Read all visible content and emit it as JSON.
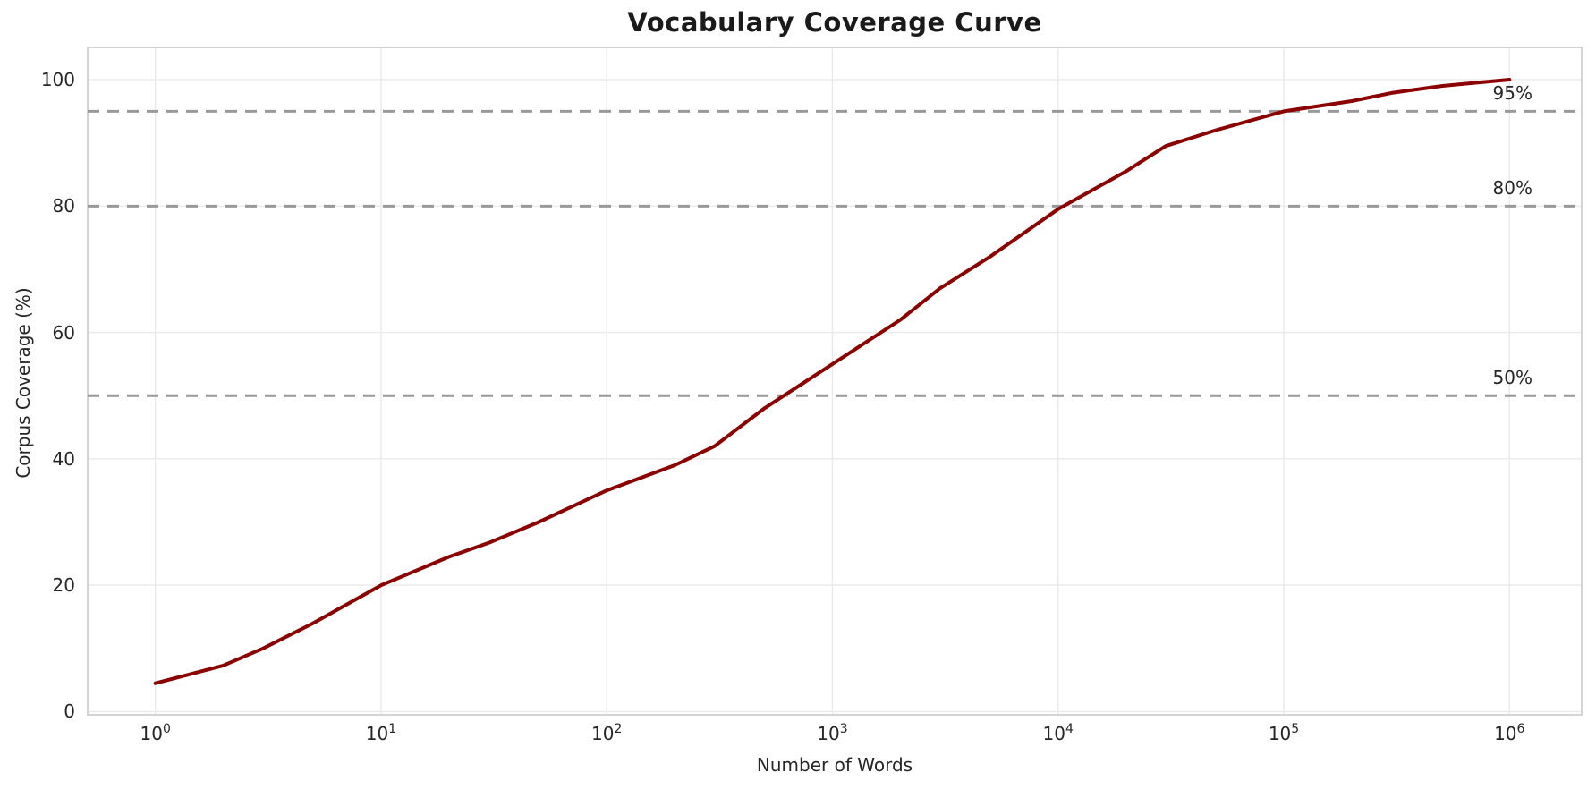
{
  "chart_data": {
    "type": "line",
    "title": "Vocabulary Coverage Curve",
    "xlabel": "Number of Words",
    "ylabel": "Corpus Coverage (%)",
    "x_scale": "log",
    "grid": true,
    "legend": false,
    "x": [
      1,
      2,
      3,
      5,
      10,
      20,
      30,
      50,
      100,
      200,
      300,
      500,
      1000,
      2000,
      3000,
      5000,
      10000,
      20000,
      30000,
      50000,
      100000,
      200000,
      300000,
      500000,
      1000000
    ],
    "y": [
      4.5,
      7.3,
      10,
      14,
      20,
      24.5,
      26.7,
      30,
      35,
      39,
      42,
      48,
      55,
      62,
      67,
      72,
      79.5,
      85.5,
      89.5,
      92,
      95,
      96.6,
      97.9,
      99,
      100
    ],
    "xlim_log10": [
      -0.3,
      6.32
    ],
    "ylim": [
      -0.5,
      105.1
    ],
    "x_tick_base": "10",
    "x_tick_exponents": [
      "0",
      "1",
      "2",
      "3",
      "4",
      "5",
      "6"
    ],
    "y_ticks": [
      "0",
      "20",
      "40",
      "60",
      "80",
      "100"
    ],
    "y_tick_values": [
      0,
      20,
      40,
      60,
      80,
      100
    ],
    "thresholds": [
      {
        "value": 50,
        "label": "50%"
      },
      {
        "value": 80,
        "label": "80%"
      },
      {
        "value": 95,
        "label": "95%"
      }
    ],
    "colors": {
      "line": "#8B0000",
      "threshold_line": "#999999",
      "grid": "#ebebeb",
      "spine": "#d4d4d4",
      "tick_text": "#262626",
      "title_text": "#1a1a1a",
      "background": "#ffffff"
    }
  }
}
